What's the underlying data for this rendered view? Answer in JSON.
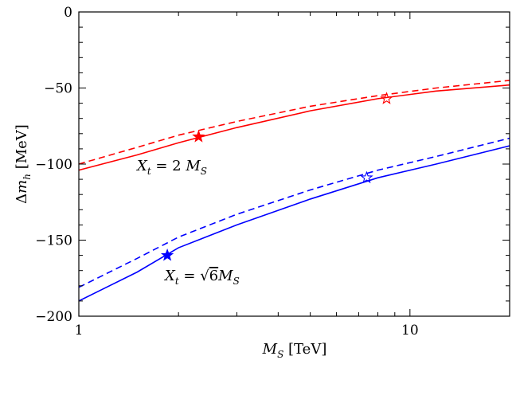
{
  "chart_data": {
    "type": "line",
    "xlabel": "M_S [TeV]",
    "ylabel": "Δm_h [MeV]",
    "xscale": "log",
    "xlim": [
      1,
      20
    ],
    "ylim": [
      -200,
      0
    ],
    "grid": false,
    "xticks": [
      {
        "value": 1,
        "label": "1"
      },
      {
        "value": 10,
        "label": "10"
      }
    ],
    "yticks": [
      {
        "value": 0,
        "label": "0"
      },
      {
        "value": -50,
        "label": "−50"
      },
      {
        "value": -100,
        "label": "−100"
      },
      {
        "value": -150,
        "label": "−150"
      },
      {
        "value": -200,
        "label": "−200"
      }
    ],
    "series": [
      {
        "color": "#ff0000",
        "style": "solid",
        "x": [
          1,
          1.5,
          2,
          3,
          5,
          8,
          12,
          20
        ],
        "y": [
          -104,
          -94,
          -86,
          -76,
          -65,
          -57,
          -52,
          -48
        ]
      },
      {
        "color": "#ff0000",
        "style": "dashed",
        "x": [
          1,
          1.5,
          2,
          3,
          5,
          8,
          12,
          20
        ],
        "y": [
          -100,
          -89,
          -81,
          -72,
          -62,
          -55,
          -50,
          -45
        ]
      },
      {
        "color": "#0000ff",
        "style": "solid",
        "x": [
          1,
          1.5,
          2,
          3,
          5,
          8,
          12,
          20
        ],
        "y": [
          -190,
          -171,
          -155,
          -140,
          -123,
          -109,
          -100,
          -88
        ]
      },
      {
        "color": "#0000ff",
        "style": "dashed",
        "x": [
          1,
          1.5,
          2,
          3,
          5,
          8,
          12,
          20
        ],
        "y": [
          -181,
          -162,
          -148,
          -133,
          -117,
          -104,
          -95,
          -83
        ]
      }
    ],
    "markers": [
      {
        "x": 2.3,
        "y": -82,
        "color": "#ff0000",
        "filled": true
      },
      {
        "x": 8.5,
        "y": -57,
        "color": "#ff0000",
        "filled": false
      },
      {
        "x": 1.85,
        "y": -160,
        "color": "#0000ff",
        "filled": true
      },
      {
        "x": 7.4,
        "y": -109,
        "color": "#0000ff",
        "filled": false
      }
    ],
    "annotations": [
      {
        "id": "red",
        "text": "X_t = 2 M_S"
      },
      {
        "id": "blue",
        "text": "X_t = √6M_S"
      }
    ]
  }
}
